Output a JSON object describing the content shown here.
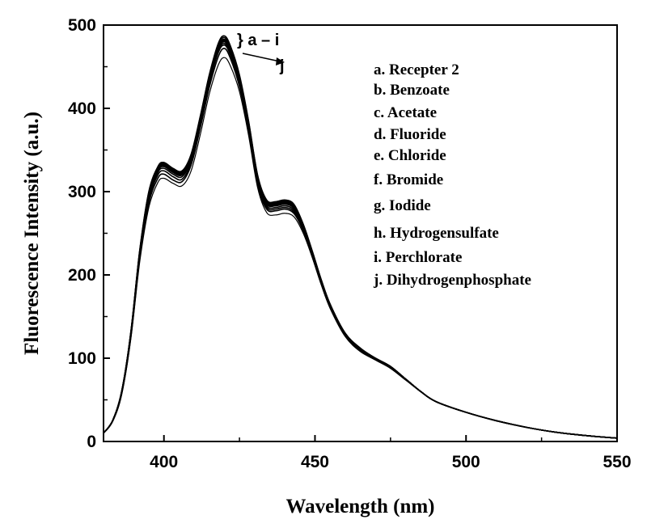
{
  "chart_data": {
    "type": "line",
    "title": "",
    "xlabel": "Wavelength (nm)",
    "ylabel": "Fluorescence Intensity (a.u.)",
    "xlim": [
      380,
      550
    ],
    "ylim": [
      0,
      500
    ],
    "xticks": [
      400,
      450,
      500,
      550
    ],
    "yticks": [
      0,
      100,
      200,
      300,
      400,
      500
    ],
    "grid": false,
    "legend_position": "top-right",
    "legend": [
      "a. Recepter 2",
      "b. Benzoate",
      "c. Acetate",
      "d. Fluoride",
      "e. Chloride",
      "f. Bromide",
      "g. Iodide",
      "h. Hydrogensulfate",
      "i.  Perchlorate",
      "j.  Dihydrogenphosphate"
    ],
    "annotations": [
      {
        "text": "} a – i",
        "x": 422,
        "y": 483
      },
      {
        "text": "j",
        "x": 438,
        "y": 462
      }
    ],
    "x": [
      380,
      383,
      386,
      389,
      392,
      395,
      398,
      400,
      403,
      406,
      409,
      412,
      415,
      418,
      420,
      422,
      425,
      428,
      431,
      434,
      437,
      440,
      443,
      446,
      449,
      452,
      455,
      460,
      465,
      470,
      475,
      480,
      485,
      490,
      500,
      510,
      520,
      530,
      540,
      550
    ],
    "series": [
      {
        "values": [
          10,
          25,
          60,
          130,
          230,
          300,
          330,
          335,
          328,
          325,
          345,
          390,
          440,
          478,
          487,
          475,
          440,
          385,
          320,
          290,
          288,
          290,
          285,
          262,
          230,
          195,
          165,
          130,
          112,
          100,
          90,
          75,
          60,
          48,
          35,
          25,
          17,
          11,
          7,
          4
        ]
      },
      {
        "values": [
          10,
          25,
          60,
          130,
          229,
          299,
          329,
          334,
          327,
          324,
          344,
          389,
          439,
          476,
          485,
          473,
          438,
          384,
          319,
          289,
          287,
          289,
          284,
          261,
          229,
          195,
          165,
          130,
          112,
          100,
          90,
          75,
          60,
          48,
          35,
          25,
          17,
          11,
          7,
          4
        ]
      },
      {
        "values": [
          10,
          25,
          60,
          129,
          228,
          298,
          328,
          333,
          326,
          323,
          343,
          388,
          437,
          474,
          483,
          471,
          437,
          383,
          318,
          288,
          286,
          288,
          283,
          260,
          229,
          194,
          164,
          130,
          112,
          100,
          90,
          75,
          60,
          48,
          35,
          25,
          17,
          11,
          7,
          4
        ]
      },
      {
        "values": [
          10,
          25,
          59,
          129,
          228,
          297,
          327,
          332,
          325,
          322,
          342,
          387,
          436,
          473,
          482,
          470,
          436,
          382,
          317,
          287,
          285,
          287,
          282,
          259,
          228,
          194,
          164,
          129,
          111,
          100,
          90,
          75,
          60,
          48,
          35,
          25,
          17,
          11,
          7,
          4
        ]
      },
      {
        "values": [
          10,
          25,
          59,
          128,
          227,
          296,
          326,
          331,
          324,
          321,
          341,
          386,
          435,
          472,
          481,
          469,
          435,
          381,
          316,
          286,
          284,
          286,
          281,
          258,
          228,
          193,
          164,
          129,
          111,
          100,
          90,
          75,
          60,
          48,
          35,
          25,
          17,
          11,
          7,
          4
        ]
      },
      {
        "values": [
          10,
          25,
          59,
          128,
          226,
          295,
          325,
          330,
          323,
          320,
          340,
          385,
          434,
          471,
          480,
          468,
          434,
          380,
          315,
          285,
          283,
          285,
          280,
          258,
          227,
          193,
          163,
          129,
          111,
          99,
          89,
          75,
          60,
          48,
          35,
          25,
          17,
          11,
          7,
          4
        ]
      },
      {
        "values": [
          10,
          25,
          58,
          127,
          225,
          293,
          323,
          328,
          321,
          318,
          338,
          383,
          432,
          469,
          478,
          466,
          432,
          378,
          313,
          283,
          281,
          283,
          278,
          257,
          226,
          192,
          163,
          128,
          110,
          99,
          89,
          75,
          60,
          48,
          35,
          25,
          17,
          11,
          7,
          4
        ]
      },
      {
        "values": [
          10,
          25,
          58,
          126,
          223,
          290,
          320,
          325,
          318,
          315,
          335,
          380,
          430,
          467,
          476,
          464,
          430,
          376,
          311,
          281,
          279,
          281,
          276,
          256,
          225,
          191,
          162,
          128,
          110,
          99,
          89,
          75,
          60,
          48,
          35,
          25,
          17,
          11,
          7,
          4
        ]
      },
      {
        "values": [
          10,
          24,
          57,
          124,
          220,
          286,
          316,
          321,
          314,
          312,
          332,
          376,
          425,
          462,
          472,
          460,
          426,
          373,
          308,
          279,
          277,
          279,
          274,
          254,
          223,
          190,
          161,
          127,
          109,
          98,
          88,
          74,
          60,
          48,
          35,
          25,
          17,
          11,
          7,
          4
        ]
      },
      {
        "values": [
          10,
          24,
          56,
          122,
          216,
          281,
          311,
          316,
          310,
          307,
          325,
          368,
          417,
          452,
          461,
          451,
          420,
          368,
          305,
          275,
          272,
          274,
          270,
          251,
          222,
          189,
          160,
          126,
          108,
          98,
          88,
          74,
          60,
          48,
          35,
          25,
          17,
          11,
          7,
          4
        ]
      }
    ]
  }
}
